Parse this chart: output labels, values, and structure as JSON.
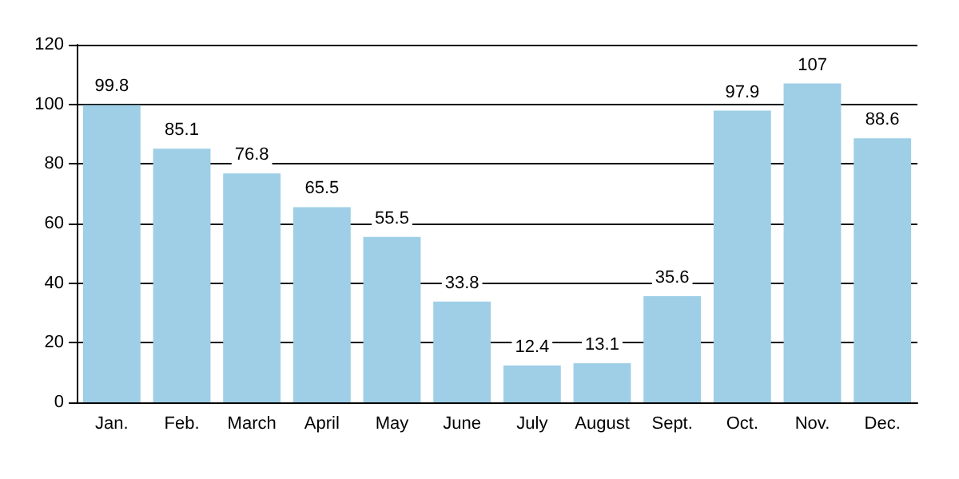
{
  "chart_data": {
    "type": "bar",
    "categories": [
      "Jan.",
      "Feb.",
      "March",
      "April",
      "May",
      "June",
      "July",
      "August",
      "Sept.",
      "Oct.",
      "Nov.",
      "Dec."
    ],
    "values": [
      99.8,
      85.1,
      76.8,
      65.5,
      55.5,
      33.8,
      12.4,
      13.1,
      35.6,
      97.9,
      107,
      88.6
    ],
    "color": "#9ecfe6",
    "ylim": [
      0,
      120
    ],
    "yticks": [
      0,
      20,
      40,
      60,
      80,
      100,
      120
    ],
    "grid": "y",
    "data_labels": true
  }
}
